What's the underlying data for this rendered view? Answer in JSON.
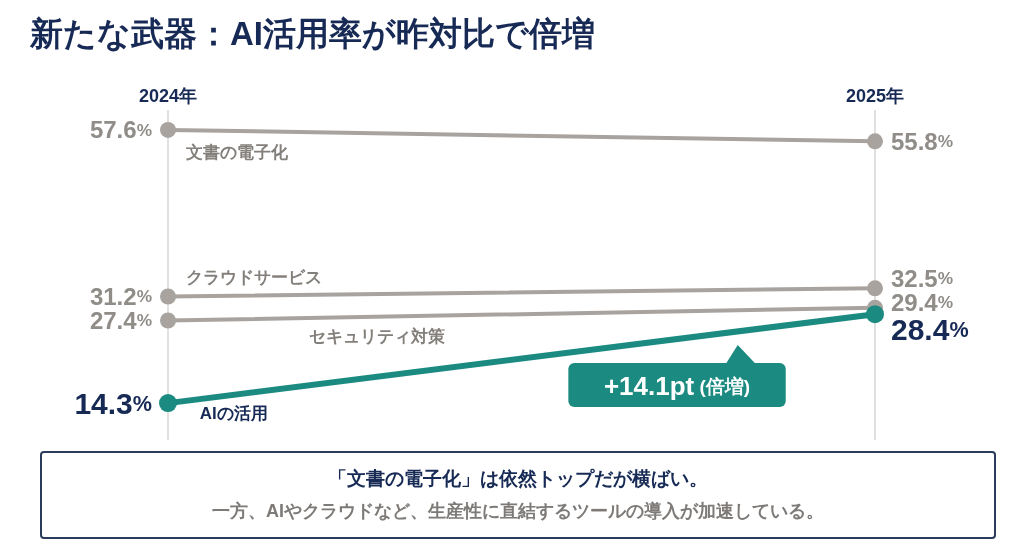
{
  "chart_data": {
    "type": "line",
    "title": "新たな武器：AI活用率が昨対比で倍増",
    "categories": [
      "2024年",
      "2025年"
    ],
    "series": [
      {
        "name": "文書の電子化",
        "color": "#a8a39e",
        "values": [
          57.6,
          55.8
        ],
        "value_labels": [
          "57.6%",
          "55.8%"
        ]
      },
      {
        "name": "クラウドサービス",
        "color": "#a8a39e",
        "values": [
          31.2,
          32.5
        ],
        "value_labels": [
          "31.2%",
          "32.5%"
        ]
      },
      {
        "name": "セキュリティ対策",
        "color": "#a8a39e",
        "values": [
          27.4,
          29.4
        ],
        "value_labels": [
          "27.4%",
          "29.4%"
        ]
      },
      {
        "name": "AIの活用",
        "color": "#1b8a80",
        "values": [
          14.3,
          28.4
        ],
        "value_labels": [
          "14.3%",
          "28.4%"
        ]
      }
    ],
    "annotations": [
      "+14.1pt (倍増)",
      "「文書の電子化」は依然トップだが横ばい。",
      "一方、AIやクラウドなど、生産性に直結するツールの導入が加速している。"
    ],
    "grid": "x",
    "marker": "circle",
    "line_style": "solid"
  }
}
